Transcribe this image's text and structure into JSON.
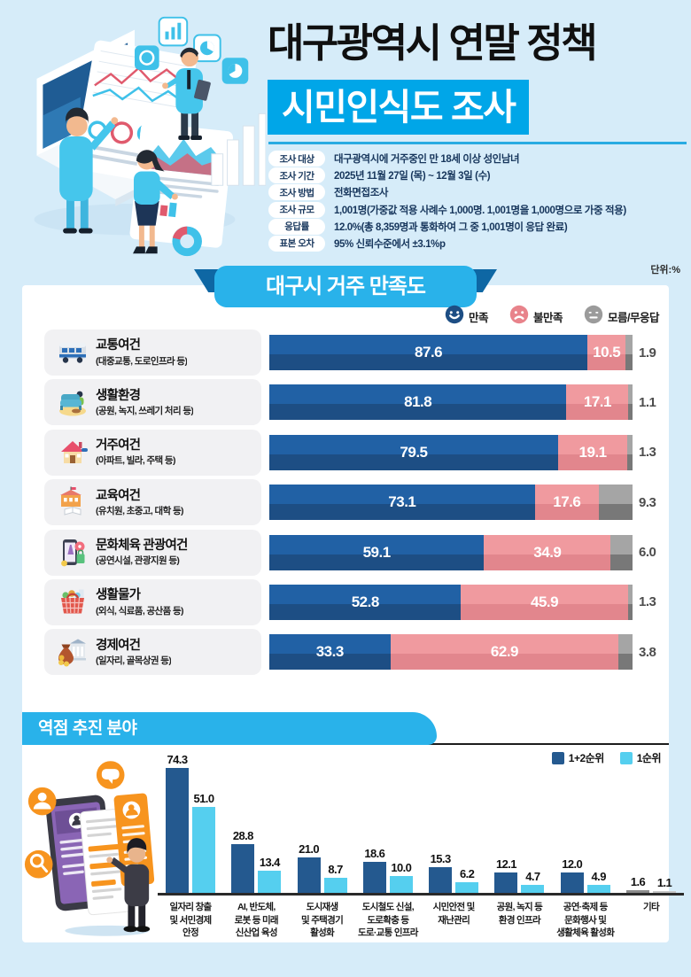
{
  "page": {
    "unit_label": "단위:%"
  },
  "header": {
    "title_black": "대구광역시 연말 정책",
    "title_highlight": "시민인식도 조사",
    "meta": [
      {
        "label": "조사 대상",
        "value": "대구광역시에 거주중인 만 18세 이상 성인남녀"
      },
      {
        "label": "조사 기간",
        "value": "2025년 11월 27일 (목) ~ 12월 3일 (수)"
      },
      {
        "label": "조사 방법",
        "value": "전화면접조사"
      },
      {
        "label": "조사 규모",
        "value": "1,001명(가중값 적용 사례수 1,000명. 1,001명을 1,000명으로 가중 적용)"
      },
      {
        "label": "응답률",
        "value": "12.0%(총 8,359명과 통화하여 그 중 1,001명이 응답 완료)"
      },
      {
        "label": "표본 오차",
        "value": "95% 신뢰수준에서 ±3.1%p"
      }
    ]
  },
  "satisfaction_section": {
    "title": "대구시 거주 만족도",
    "legend": [
      {
        "label": "만족",
        "color": "#1d4e84",
        "icon": "face-satisfied-icon"
      },
      {
        "label": "불만족",
        "color": "#e8838b",
        "icon": "face-dissatisfied-icon"
      },
      {
        "label": "모름/무응답",
        "color": "#9b9b9b",
        "icon": "face-unknown-icon"
      }
    ],
    "icons": [
      "bus-icon",
      "sofa-icon",
      "house-icon",
      "school-icon",
      "travel-phone-icon",
      "shopping-basket-icon",
      "money-bag-icon"
    ]
  },
  "priority_section": {
    "title": "역점 추진 분야",
    "legend": [
      {
        "label": "1+2순위",
        "color": "#24598f"
      },
      {
        "label": "1순위",
        "color": "#55cfef"
      }
    ],
    "other_colors": {
      "dark": "#8c8c8c",
      "light": "#c6c6c6"
    }
  },
  "colors": {
    "page_bg": "#d6ecf9",
    "accent_blue": "#29b2ea",
    "highlight_blue": "#00a6e8",
    "bar_satisfied": "#1d4e84",
    "bar_dissatisfied": "#e2868d",
    "bar_unknown": "#8a8a8a",
    "rank12_navy": "#24598f",
    "rank1_cyan": "#55cfef"
  },
  "chart_data": [
    {
      "type": "bar",
      "orientation": "horizontal-stacked",
      "title": "대구시 거주 만족도",
      "unit": "%",
      "xlim": [
        0,
        100
      ],
      "legend": [
        "만족",
        "불만족",
        "모름/무응답"
      ],
      "categories": [
        "교통여건",
        "생활환경",
        "거주여건",
        "교육여건",
        "문화체육 관광여건",
        "생활물가",
        "경제여건"
      ],
      "category_notes": [
        "(대중교통, 도로인프라 등)",
        "(공원, 녹지, 쓰레기 처리 등)",
        "(아파트, 빌라, 주택 등)",
        "(유치원, 초중고, 대학 등)",
        "(공연시설, 관광지원 등)",
        "(외식, 식료품, 공산품 등)",
        "(일자리, 골목상권 등)"
      ],
      "series": [
        {
          "name": "만족",
          "values": [
            87.6,
            81.8,
            79.5,
            73.1,
            59.1,
            52.8,
            33.3
          ]
        },
        {
          "name": "불만족",
          "values": [
            10.5,
            17.1,
            19.1,
            17.6,
            34.9,
            45.9,
            62.9
          ]
        },
        {
          "name": "모름/무응답",
          "values": [
            1.9,
            1.1,
            1.3,
            9.3,
            6.0,
            1.3,
            3.8
          ]
        }
      ]
    },
    {
      "type": "bar",
      "orientation": "vertical-grouped",
      "title": "역점 추진 분야",
      "unit": "%",
      "ylim": [
        0,
        80
      ],
      "legend": [
        "1+2순위",
        "1순위"
      ],
      "categories": [
        "일자리 창출\n및 서민경제\n안정",
        "AI, 반도체,\n로봇 등 미래\n신산업 육성",
        "도시재생\n및 주택경기\n활성화",
        "도시철도 신설,\n도로확충 등\n도로·교통 인프라",
        "시민안전 및\n재난관리",
        "공원, 녹지 등\n환경 인프라",
        "공연·축제 등\n문화행사 및\n생활체육 활성화",
        "기타"
      ],
      "series": [
        {
          "name": "1+2순위",
          "values": [
            74.3,
            28.8,
            21.0,
            18.6,
            15.3,
            12.1,
            12.0,
            1.6
          ]
        },
        {
          "name": "1순위",
          "values": [
            51.0,
            13.4,
            8.7,
            10.0,
            6.2,
            4.7,
            4.9,
            1.1
          ]
        }
      ]
    }
  ]
}
